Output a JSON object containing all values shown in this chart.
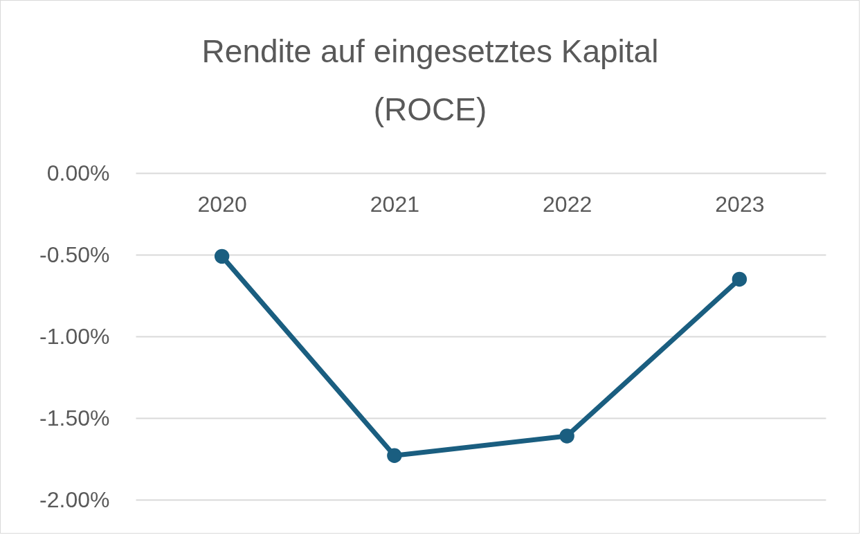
{
  "chart_data": {
    "type": "line",
    "title": "Rendite auf eingesetztes Kapital (ROCE)",
    "categories": [
      "2020",
      "2021",
      "2022",
      "2023"
    ],
    "series": [
      {
        "color": "#1a5e80",
        "values": [
          -0.51,
          -1.73,
          -1.61,
          -0.65
        ]
      }
    ],
    "ylim": [
      -2,
      0
    ],
    "yticks": [
      {
        "value": 0,
        "label": "0.00%"
      },
      {
        "value": -0.5,
        "label": "-0.50%"
      },
      {
        "value": -1,
        "label": "-1.00%"
      },
      {
        "value": -1.5,
        "label": "-1.50%"
      },
      {
        "value": -2,
        "label": "-2.00%"
      }
    ],
    "grid": "y",
    "marker": "circle"
  }
}
